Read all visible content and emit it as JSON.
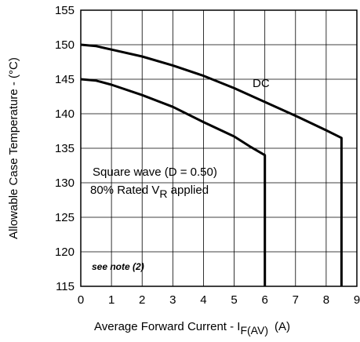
{
  "chart_data": {
    "type": "line",
    "xlabel": "Average Forward Current - I",
    "xlabel_sub": "F(AV)",
    "xlabel_unit": "(A)",
    "ylabel": "Allowable Case Temperature - (°C)",
    "xlim": [
      0,
      9
    ],
    "ylim": [
      115,
      155
    ],
    "x_ticks": [
      "0",
      "1",
      "2",
      "3",
      "4",
      "5",
      "6",
      "7",
      "8",
      "9"
    ],
    "y_ticks": [
      "115",
      "120",
      "125",
      "130",
      "135",
      "140",
      "145",
      "150",
      "155"
    ],
    "grid": true,
    "series": [
      {
        "name": "DC",
        "x": [
          0,
          0.5,
          1,
          2,
          3,
          4,
          5,
          6,
          7,
          8,
          8.5,
          8.5
        ],
        "y": [
          150,
          149.8,
          149.3,
          148.3,
          147,
          145.5,
          143.7,
          141.7,
          139.7,
          137.6,
          136.5,
          115
        ]
      },
      {
        "name": "Square wave (D = 0.50)",
        "x": [
          0,
          0.5,
          1,
          2,
          3,
          4,
          5,
          5.5,
          6,
          6
        ],
        "y": [
          145,
          144.8,
          144.2,
          142.7,
          141,
          138.8,
          136.7,
          135.3,
          134,
          115
        ]
      }
    ],
    "annotations": {
      "dc_label": "DC",
      "square_line1": "Square wave (D = 0.50)",
      "square_line2_a": "80% Rated V",
      "square_line2_sub": "R",
      "square_line2_b": " applied",
      "note": "see note (2)"
    }
  }
}
